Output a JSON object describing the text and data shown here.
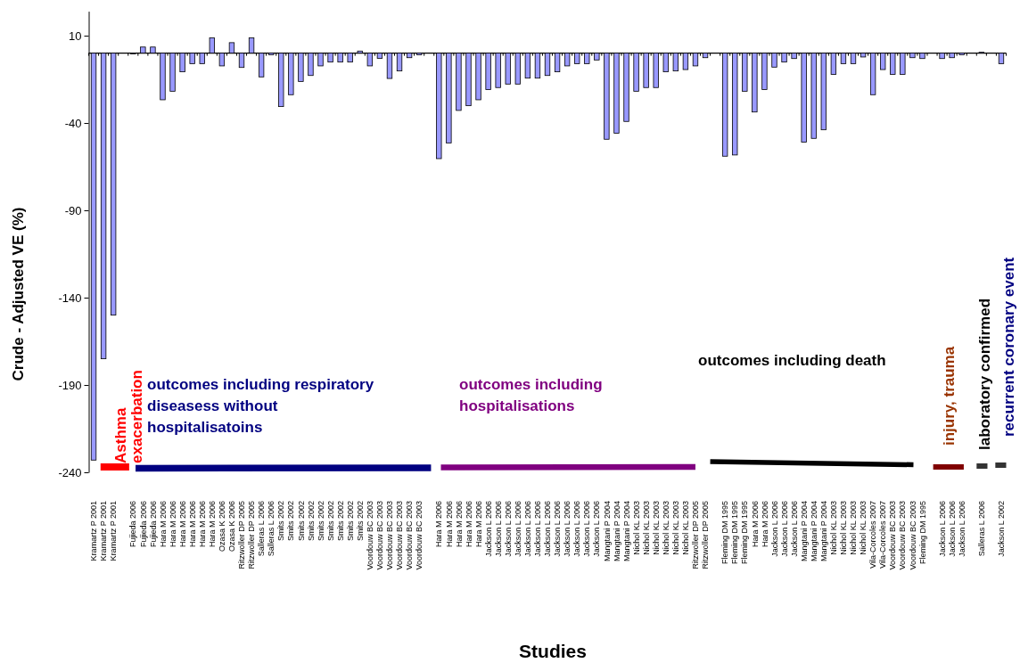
{
  "chart_data": {
    "type": "bar",
    "xlabel": "Studies",
    "ylabel": "Crude - Adjusted VE (%)",
    "categories": [
      "Kramartz P 2001",
      "Kramartz P 2001",
      "Kramartz P 2001",
      null,
      "Fujieda 2006",
      "Fujieda 2006",
      "Fujieda 2006",
      "Hara M 2006",
      "Hara M 2006",
      "Hara M 2006",
      "Hara M 2006",
      "Hara M 2006",
      "Hara M 2006",
      "Ozasa K 2006",
      "Ozasa K 2006",
      "Ritzwoller DP 2005",
      "Ritzwoller DP 2005",
      "Salleras L 2006",
      "Salleras L 2006",
      "Smits 2002",
      "Smits 2002",
      "Smits 2002",
      "Smits 2002",
      "Smits 2002",
      "Smits 2002",
      "Smits 2002",
      "Smits 2002",
      "Smits 2002",
      "Voordouw BC 2003",
      "Voordouw BC 2003",
      "Voordouw BC 2003",
      "Voordouw BC 2003",
      "Voordouw BC 2003",
      "Voordouw BC 2003",
      null,
      "Hara M 2006",
      "Hara M 2006",
      "Hara M 2006",
      "Hara M 2006",
      "Hara M 2006",
      "Jackson L 2006",
      "Jackson L 2006",
      "Jackson L 2006",
      "Jackson L 2006",
      "Jackson L 2006",
      "Jackson L 2006",
      "Jackson L 2006",
      "Jackson L 2006",
      "Jackson L 2006",
      "Jackson L 2006",
      "Jackson L 2006",
      "Jackson L 2006",
      "Mangtani P 2004",
      "Mangtani P 2004",
      "Mangtani P 2004",
      "Nichol KL 2003",
      "Nichol KL 2003",
      "Nichol KL 2003",
      "Nichol KL 2003",
      "Nichol KL 2003",
      "Nichol KL 2003",
      "Ritzwoller DP 2005",
      "Ritzwoller DP 2005",
      null,
      "Fleming DM 1995",
      "Fleming DM 1995",
      "Fleming DM 1995",
      "Hara M 2006",
      "Hara M 2006",
      "Jackson L 2006",
      "Jackson L 2006",
      "Jackson L 2006",
      "Mangtani P 2004",
      "Mangtani P 2004",
      "Mangtani P 2004",
      "Nichol KL 2003",
      "Nichol KL 2003",
      "Nichol KL 2003",
      "Nichol KL 2003",
      "Vila-Corcoles 2007",
      "Vila-Corcoles 2007",
      "Voordouw BC 2003",
      "Voordouw BC 2003",
      "Voordouw BC 2003",
      "Fleming DM 1995",
      null,
      "Jackson L 2006",
      "Jackson L 2006",
      "Jackson L 2006",
      null,
      "Salleras L 2006",
      null,
      "Jackson L 2002"
    ],
    "values": [
      -233,
      -175,
      -150,
      null,
      0,
      3.5,
      3.5,
      -26.7,
      -21.8,
      -10.7,
      -6,
      -6,
      8.8,
      -7.3,
      6,
      -8.2,
      8.8,
      -13.6,
      -0.9,
      -30.6,
      -23.8,
      -16.2,
      -12.8,
      -7.3,
      -5.1,
      -5.1,
      -5.1,
      1.2,
      -7.3,
      -3,
      -14.5,
      -10.2,
      -2.6,
      -1,
      null,
      -60.4,
      -51.4,
      -32.8,
      -30.1,
      -26.7,
      -20.9,
      -19.7,
      -17.7,
      -17.7,
      -14.3,
      -14.3,
      -12.8,
      -10.7,
      -7.3,
      -6,
      -6,
      -3.9,
      -49.3,
      -45.9,
      -39.1,
      -21.8,
      -19.7,
      -19.7,
      -10.7,
      -10.2,
      -9.4,
      -7.3,
      -2.6,
      null,
      -59,
      -58.3,
      -21.8,
      -33.7,
      -20.9,
      -8,
      -5.1,
      -3.1,
      -51,
      -48.8,
      -43.9,
      -12.2,
      -6,
      -6,
      -2.2,
      -23.8,
      -9.4,
      -12.2,
      -12.2,
      -2.6,
      -3.1,
      null,
      -3.1,
      -2.6,
      -0.9,
      null,
      0.5,
      null,
      -6
    ],
    "color": "#9999ff",
    "ylim": [
      -240,
      24
    ],
    "yticks": [
      10,
      -40,
      -90,
      -140,
      -190,
      -240
    ],
    "annotations": [
      "Asthma exacerbation",
      "outcomes including respiratory diseasess without hospitalisatoins",
      "outcomes including hospitalisations",
      "outcomes including death",
      "injury, trauma",
      "laboratory confirmed",
      "recurrent coronary event"
    ]
  }
}
